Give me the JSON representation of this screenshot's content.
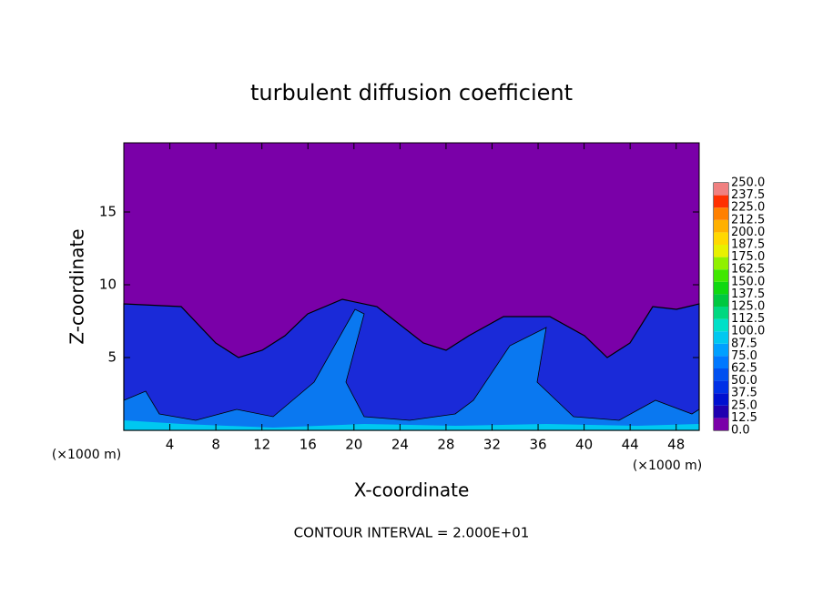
{
  "chart_data": {
    "type": "contour",
    "title": "turbulent diffusion coefficient",
    "x_label": "X-coordinate",
    "y_label": "Z-coordinate",
    "x_unit_left": "(×1000 m)",
    "x_unit_right": "(×1000 m)",
    "footer": "CONTOUR INTERVAL = 2.000E+01",
    "xlim": [
      0,
      50
    ],
    "ylim": [
      0,
      19.75
    ],
    "xticks": [
      4,
      8,
      12,
      16,
      20,
      24,
      28,
      32,
      36,
      40,
      44,
      48
    ],
    "yticks": [
      5,
      10,
      15
    ],
    "colorbar": {
      "levels": [
        {
          "value": 0,
          "label": "0.0"
        },
        12.5,
        {
          "value": 25,
          "label": "25.0"
        },
        37.5,
        {
          "value": 50,
          "label": "50.0"
        },
        62.5,
        {
          "value": 75,
          "label": "75.0"
        },
        87.5,
        {
          "value": 100,
          "label": "100.0"
        },
        112.5,
        {
          "value": 125,
          "label": "125.0"
        },
        137.5,
        {
          "value": 150,
          "label": "150.0"
        },
        162.5,
        {
          "value": 175,
          "label": "175.0"
        },
        187.5,
        {
          "value": 200,
          "label": "200.0"
        },
        212.5,
        {
          "value": 225,
          "label": "225.0"
        },
        237.5,
        {
          "value": 250,
          "label": "250.0"
        }
      ],
      "colors": [
        "#7a00a8",
        "#2000b0",
        "#0010d0",
        "#0030e6",
        "#0050f0",
        "#0078ff",
        "#00a0ff",
        "#00c8f0",
        "#00e0c8",
        "#00d880",
        "#00c840",
        "#10d810",
        "#40e800",
        "#90f000",
        "#e8f000",
        "#ffd800",
        "#ffb000",
        "#ff8000",
        "#ff3000",
        "#f08080"
      ]
    }
  }
}
